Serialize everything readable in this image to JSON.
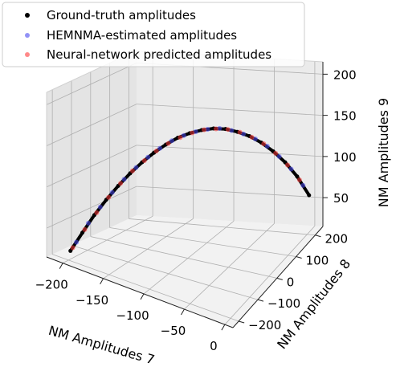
{
  "chart_data": {
    "type": "scatter",
    "projection": "3d",
    "grid": true,
    "legend_position": "top-left",
    "xlabel": "NM Amplitudes 7",
    "ylabel": "NM Amplitudes 8",
    "zlabel": "NM Amplitudes 9",
    "xlim": [
      -220,
      10
    ],
    "ylim": [
      -230,
      240
    ],
    "zlim": [
      15,
      215
    ],
    "x_ticks": [
      -200,
      -150,
      -100,
      -50,
      0
    ],
    "y_ticks": [
      -200,
      -100,
      0,
      100,
      200
    ],
    "z_ticks": [
      50,
      100,
      150,
      200
    ],
    "series": [
      {
        "name": "Ground-truth amplitudes",
        "color": "#000000",
        "x": [
          -200,
          -190,
          -180,
          -170,
          -160,
          -150,
          -140,
          -130,
          -120,
          -110,
          -100,
          -90,
          -80,
          -70,
          -60,
          -50,
          -40,
          -30,
          -20,
          -10,
          0
        ],
        "y": [
          -190,
          -170,
          -150,
          -130,
          -110,
          -90,
          -70,
          -50,
          -30,
          -10,
          10,
          30,
          50,
          70,
          90,
          110,
          130,
          150,
          170,
          190,
          210
        ],
        "z": [
          25,
          48,
          70,
          89,
          106,
          121,
          134,
          145,
          154,
          161,
          165,
          167,
          167,
          164,
          158,
          150,
          139,
          125,
          108,
          87,
          60
        ]
      },
      {
        "name": "HEMNMA-estimated amplitudes",
        "color": "#4a4af0",
        "x": [
          -195,
          -185,
          -175,
          -165,
          -155,
          -145,
          -135,
          -125,
          -115,
          -105,
          -95,
          -85,
          -75,
          -65,
          -55,
          -45,
          -35,
          -25,
          -15,
          -5
        ],
        "y": [
          -180,
          -160,
          -140,
          -120,
          -100,
          -80,
          -60,
          -40,
          -20,
          0,
          20,
          40,
          60,
          80,
          100,
          120,
          140,
          160,
          180,
          200
        ],
        "z": [
          36,
          60,
          80,
          98,
          114,
          128,
          140,
          150,
          158,
          163,
          166,
          167,
          166,
          161,
          154,
          145,
          133,
          117,
          98,
          74
        ]
      },
      {
        "name": "Neural-network predicted amplitudes",
        "color": "#ff3b3b",
        "x": [
          -198,
          -188,
          -178,
          -168,
          -158,
          -148,
          -138,
          -128,
          -118,
          -108,
          -98,
          -88,
          -78,
          -68,
          -58,
          -48,
          -38,
          -28,
          -18,
          -8
        ],
        "y": [
          -186,
          -166,
          -146,
          -126,
          -106,
          -86,
          -66,
          -46,
          -26,
          -6,
          14,
          34,
          54,
          74,
          94,
          114,
          134,
          154,
          174,
          194
        ],
        "z": [
          29,
          52,
          73,
          92,
          109,
          124,
          136,
          147,
          155,
          161,
          165,
          167,
          166,
          163,
          157,
          148,
          137,
          122,
          104,
          82
        ]
      }
    ]
  }
}
